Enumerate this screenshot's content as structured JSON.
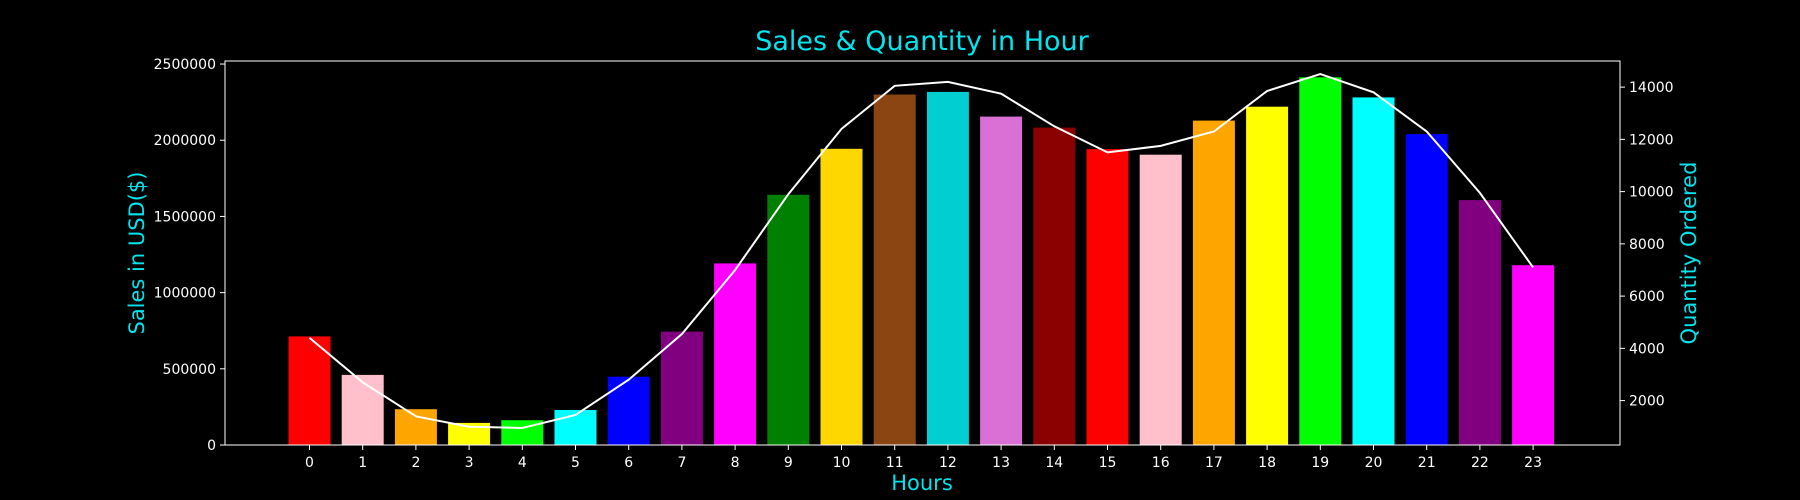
{
  "chart_data": {
    "type": "bar",
    "title": "Sales & Quantity in Hour",
    "xlabel": "Hours",
    "ylabel": "Sales in USD($)",
    "y2label": "Quantity Ordered",
    "categories": [
      "0",
      "1",
      "2",
      "3",
      "4",
      "5",
      "6",
      "7",
      "8",
      "9",
      "10",
      "11",
      "12",
      "13",
      "14",
      "15",
      "16",
      "17",
      "18",
      "19",
      "20",
      "21",
      "22",
      "23"
    ],
    "ylim": [
      0,
      2520000
    ],
    "y2lim": [
      300,
      15000
    ],
    "yticks": [
      0,
      500000,
      1000000,
      1500000,
      2000000,
      2500000
    ],
    "y2ticks": [
      2000,
      4000,
      6000,
      8000,
      10000,
      12000,
      14000
    ],
    "grid": false,
    "series": [
      {
        "type": "bar",
        "axis": "left",
        "values": [
          713000,
          460000,
          235000,
          145000,
          163000,
          230000,
          448000,
          744000,
          1192000,
          1642000,
          1944000,
          2300000,
          2317000,
          2155000,
          2083000,
          1942000,
          1905000,
          2129000,
          2220000,
          2413000,
          2281000,
          2040000,
          1607000,
          1180000
        ],
        "colors": [
          "#ff0000",
          "#ffc0cb",
          "#ffa500",
          "#ffff00",
          "#00ff00",
          "#00ffff",
          "#0000ff",
          "#800080",
          "#ff00ff",
          "#008000",
          "#ffd700",
          "#8b4513",
          "#00ced1",
          "#da70d6",
          "#8b0000",
          "#ff0000",
          "#ffc0cb",
          "#ffa500",
          "#ffff00",
          "#00ff00",
          "#00ffff",
          "#0000ff",
          "#800080",
          "#ff00ff"
        ]
      },
      {
        "type": "line",
        "axis": "right",
        "color": "#ffffff",
        "values": [
          4400,
          2700,
          1400,
          1000,
          950,
          1450,
          2800,
          4550,
          7000,
          9900,
          12400,
          14050,
          14200,
          13750,
          12500,
          11500,
          11750,
          12300,
          13850,
          14500,
          13800,
          12300,
          9950,
          7100
        ]
      }
    ]
  }
}
